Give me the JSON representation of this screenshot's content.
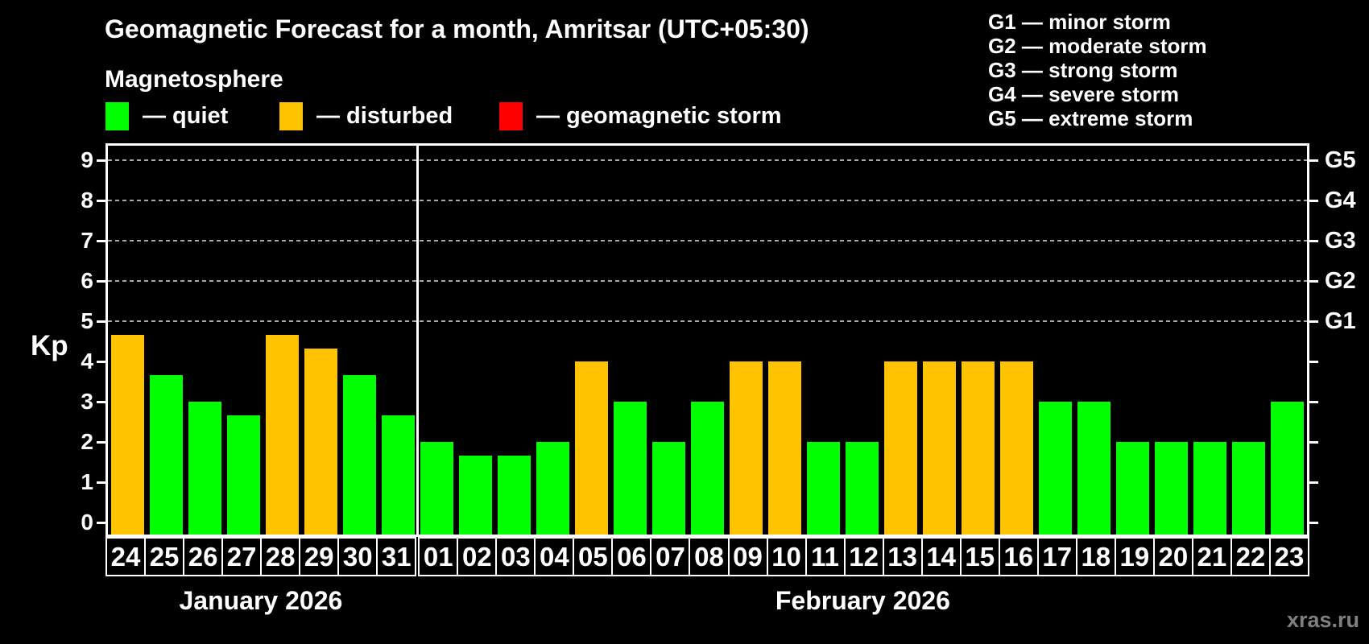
{
  "title": "Geomagnetic Forecast for a month, Amritsar (UTC+05:30)",
  "subtitle": "Magnetosphere",
  "legend": [
    {
      "name": "quiet",
      "label": "— quiet",
      "color": "#00ff00"
    },
    {
      "name": "disturbed",
      "label": "— disturbed",
      "color": "#ffc300"
    },
    {
      "name": "storm",
      "label": "— geomagnetic storm",
      "color": "#ff0000"
    }
  ],
  "storm_scale_legend": [
    "G1 — minor storm",
    "G2 — moderate storm",
    "G3 — strong storm",
    "G4 — severe storm",
    "G5 — extreme storm"
  ],
  "watermark": "xras.ru",
  "chart_data": {
    "type": "bar",
    "title": "Geomagnetic Forecast for a month, Amritsar (UTC+05:30)",
    "ylabel": "Kp",
    "ylim": [
      0,
      9
    ],
    "y_ticks": [
      0,
      1,
      2,
      3,
      4,
      5,
      6,
      7,
      8,
      9
    ],
    "gridlines_at_kp": [
      5,
      6,
      7,
      8,
      9
    ],
    "grid": "dashed horizontal at storm levels only",
    "legend_position": "top",
    "right_axis": [
      {
        "kp": 5,
        "label": "G1"
      },
      {
        "kp": 6,
        "label": "G2"
      },
      {
        "kp": 7,
        "label": "G3"
      },
      {
        "kp": 8,
        "label": "G4"
      },
      {
        "kp": 9,
        "label": "G5"
      }
    ],
    "status_colors": {
      "quiet": "#00ff00",
      "disturbed": "#ffc300",
      "storm": "#ff0000"
    },
    "months": [
      {
        "key": "january",
        "label": "January 2026",
        "bars": [
          {
            "day": "24",
            "kp": 4.67,
            "status": "disturbed"
          },
          {
            "day": "25",
            "kp": 3.67,
            "status": "quiet"
          },
          {
            "day": "26",
            "kp": 3.0,
            "status": "quiet"
          },
          {
            "day": "27",
            "kp": 2.67,
            "status": "quiet"
          },
          {
            "day": "28",
            "kp": 4.67,
            "status": "disturbed"
          },
          {
            "day": "29",
            "kp": 4.33,
            "status": "disturbed"
          },
          {
            "day": "30",
            "kp": 3.67,
            "status": "quiet"
          },
          {
            "day": "31",
            "kp": 2.67,
            "status": "quiet"
          }
        ]
      },
      {
        "key": "february",
        "label": "February 2026",
        "bars": [
          {
            "day": "01",
            "kp": 2.0,
            "status": "quiet"
          },
          {
            "day": "02",
            "kp": 1.67,
            "status": "quiet"
          },
          {
            "day": "03",
            "kp": 1.67,
            "status": "quiet"
          },
          {
            "day": "04",
            "kp": 2.0,
            "status": "quiet"
          },
          {
            "day": "05",
            "kp": 4.0,
            "status": "disturbed"
          },
          {
            "day": "06",
            "kp": 3.0,
            "status": "quiet"
          },
          {
            "day": "07",
            "kp": 2.0,
            "status": "quiet"
          },
          {
            "day": "08",
            "kp": 3.0,
            "status": "quiet"
          },
          {
            "day": "09",
            "kp": 4.0,
            "status": "disturbed"
          },
          {
            "day": "10",
            "kp": 4.0,
            "status": "disturbed"
          },
          {
            "day": "11",
            "kp": 2.0,
            "status": "quiet"
          },
          {
            "day": "12",
            "kp": 2.0,
            "status": "quiet"
          },
          {
            "day": "13",
            "kp": 4.0,
            "status": "disturbed"
          },
          {
            "day": "14",
            "kp": 4.0,
            "status": "disturbed"
          },
          {
            "day": "15",
            "kp": 4.0,
            "status": "disturbed"
          },
          {
            "day": "16",
            "kp": 4.0,
            "status": "disturbed"
          },
          {
            "day": "17",
            "kp": 3.0,
            "status": "quiet"
          },
          {
            "day": "18",
            "kp": 3.0,
            "status": "quiet"
          },
          {
            "day": "19",
            "kp": 2.0,
            "status": "quiet"
          },
          {
            "day": "20",
            "kp": 2.0,
            "status": "quiet"
          },
          {
            "day": "21",
            "kp": 2.0,
            "status": "quiet"
          },
          {
            "day": "22",
            "kp": 2.0,
            "status": "quiet"
          },
          {
            "day": "23",
            "kp": 3.0,
            "status": "quiet"
          }
        ]
      }
    ]
  }
}
